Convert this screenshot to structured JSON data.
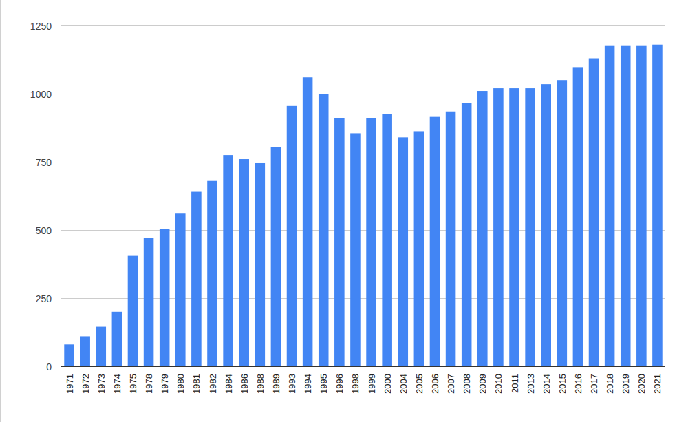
{
  "chart_data": {
    "type": "bar",
    "categories": [
      "1971",
      "1972",
      "1973",
      "1974",
      "1975",
      "1978",
      "1979",
      "1980",
      "1981",
      "1982",
      "1984",
      "1986",
      "1988",
      "1989",
      "1993",
      "1994",
      "1995",
      "1996",
      "1998",
      "1999",
      "2000",
      "2004",
      "2005",
      "2006",
      "2007",
      "2008",
      "2009",
      "2010",
      "2011",
      "2013",
      "2014",
      "2015",
      "2016",
      "2017",
      "2018",
      "2019",
      "2020",
      "2021"
    ],
    "values": [
      80,
      110,
      145,
      200,
      405,
      470,
      505,
      560,
      640,
      680,
      775,
      760,
      745,
      805,
      955,
      1060,
      1000,
      910,
      855,
      910,
      925,
      840,
      860,
      915,
      935,
      965,
      1010,
      1020,
      1020,
      1020,
      1035,
      1050,
      1095,
      1130,
      1175,
      1175,
      1175,
      1180
    ],
    "color": "#4285f4",
    "ylim": [
      0,
      1250
    ],
    "yticks": [
      0,
      250,
      500,
      750,
      1000,
      1250
    ],
    "grid": true
  }
}
